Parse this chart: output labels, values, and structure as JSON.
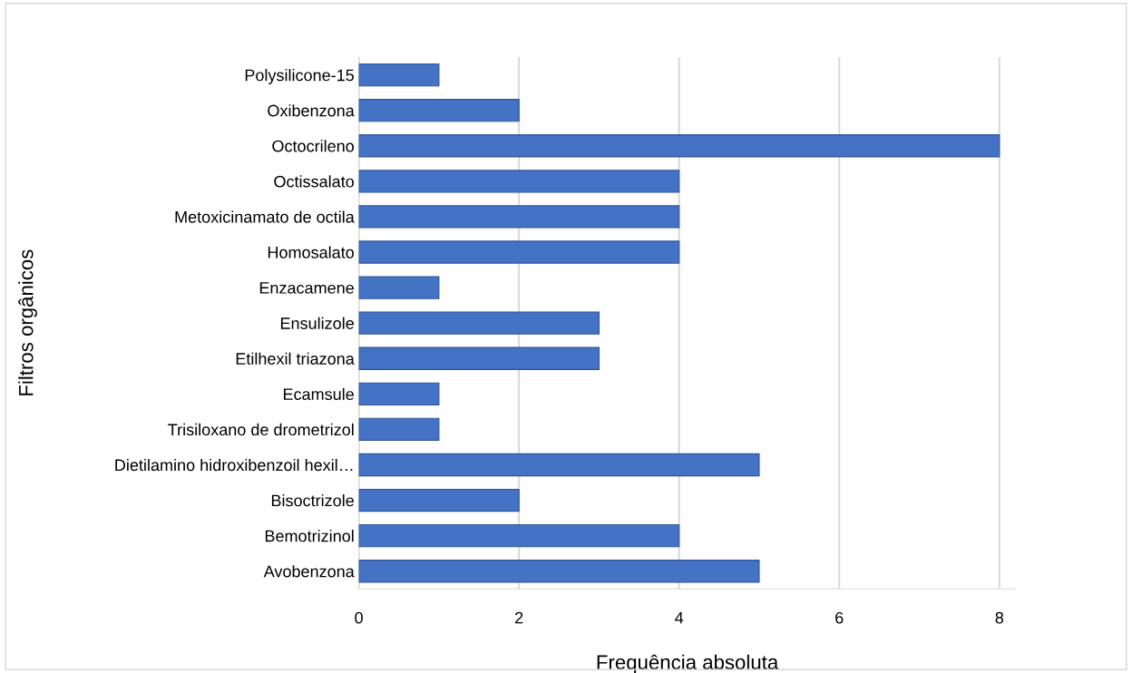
{
  "chart_data": {
    "type": "bar",
    "orientation": "horizontal",
    "xlabel": "Frequência absoluta",
    "ylabel": "Filtros orgânicos",
    "categories": [
      "Polysilicone-15",
      "Oxibenzona",
      "Octocrileno",
      "Octissalato",
      "Metoxicinamato de octila",
      "Homosalato",
      "Enzacamene",
      "Ensulizole",
      "Etilhexil triazona",
      "Ecamsule",
      "Trisiloxano de drometrizol",
      "Dietilamino hidroxibenzoil hexil…",
      "Bisoctrizole",
      "Bemotrizinol",
      "Avobenzona"
    ],
    "values": [
      1,
      2,
      8,
      4,
      4,
      4,
      1,
      3,
      3,
      1,
      1,
      5,
      2,
      4,
      5
    ],
    "color": "#4472c4",
    "xlim": [
      0,
      8.2
    ],
    "xticks": [
      0,
      2,
      4,
      6,
      8
    ],
    "grid": "x"
  }
}
